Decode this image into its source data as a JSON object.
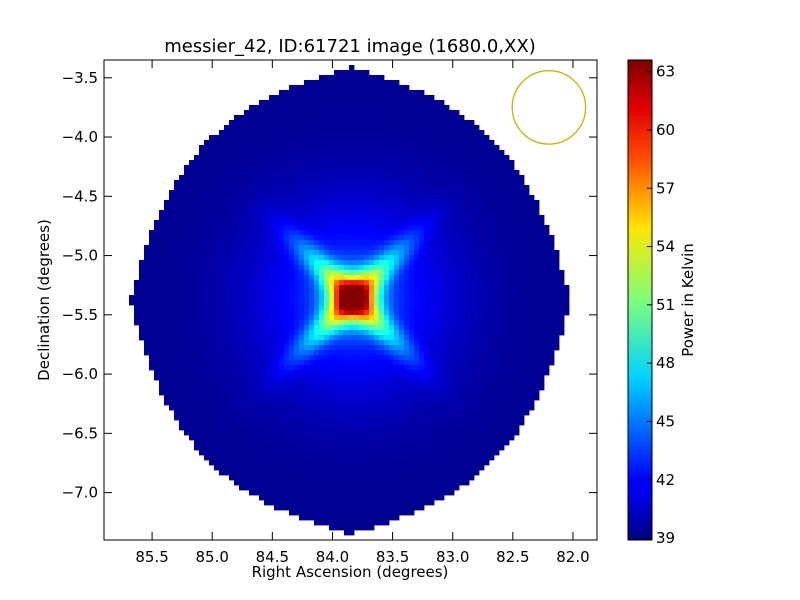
{
  "chart_data": {
    "type": "heatmap",
    "title": "messier_42, ID:61721 image (1680.0,XX)",
    "xlabel": "Right Ascension (degrees)",
    "ylabel": "Declination (degrees)",
    "xlim": [
      85.9,
      81.8
    ],
    "ylim": [
      -7.4,
      -3.35
    ],
    "x_inverted": true,
    "x_ticks": [
      85.5,
      85.0,
      84.5,
      84.0,
      83.5,
      83.0,
      82.5,
      82.0
    ],
    "x_tick_labels": [
      "85.5",
      "85.0",
      "84.5",
      "84.0",
      "83.5",
      "83.0",
      "82.5",
      "82.0"
    ],
    "y_ticks": [
      -3.5,
      -4.0,
      -4.5,
      -5.0,
      -5.5,
      -6.0,
      -6.5,
      -7.0
    ],
    "y_tick_labels": [
      "−3.5",
      "−4.0",
      "−4.5",
      "−5.0",
      "−5.5",
      "−6.0",
      "−6.5",
      "−7.0"
    ],
    "colormap": "jet",
    "colorbar": {
      "label": "Power in Kelvin",
      "min": 38.9,
      "max": 63.6,
      "ticks": [
        39,
        42,
        45,
        48,
        51,
        54,
        57,
        60,
        63
      ],
      "tick_labels": [
        "39",
        "42",
        "45",
        "48",
        "51",
        "54",
        "57",
        "60",
        "63"
      ]
    },
    "field": {
      "shape": "diamond",
      "center_ra": 83.85,
      "center_dec": -5.38,
      "half_width_ra": 1.83,
      "half_height_dec": 1.97,
      "background_value": 39.3
    },
    "peak": {
      "ra": 83.83,
      "dec": -5.36,
      "value": 63.5,
      "shape": "four-pointed star"
    },
    "beam": {
      "ra": 82.2,
      "dec": -3.75,
      "radius_deg": 0.31,
      "color": "#c8b400"
    },
    "grid": false
  }
}
